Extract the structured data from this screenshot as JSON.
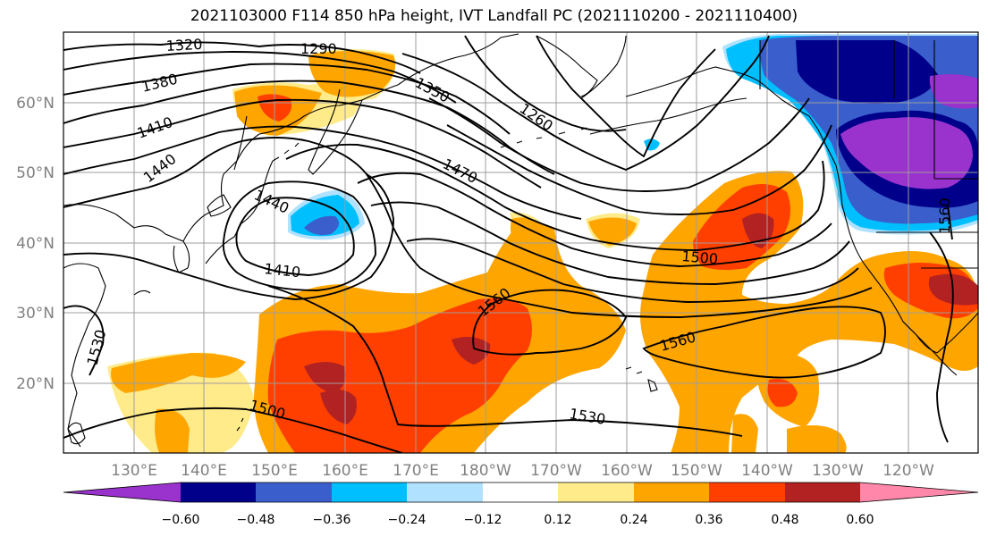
{
  "title": "2021103000 F114 850 hPa height, IVT Landfall PC (2021110200 - 2021110400)",
  "lat_labels": [
    "60°N",
    "50°N",
    "40°N",
    "30°N",
    "20°N"
  ],
  "lon_labels": [
    "130°E",
    "140°E",
    "150°E",
    "160°E",
    "170°E",
    "180°W",
    "170°W",
    "160°W",
    "150°W",
    "140°W",
    "130°W",
    "120°W"
  ],
  "contour_labels": [
    "1320",
    "1290",
    "1380",
    "1350",
    "1260",
    "1410",
    "1440",
    "1470",
    "1440",
    "1410",
    "1500",
    "1560",
    "1560",
    "1530",
    "1500",
    "1530",
    "1560"
  ],
  "colorbar": {
    "ticks": [
      "−0.60",
      "−0.48",
      "−0.36",
      "−0.24",
      "−0.12",
      "0.12",
      "0.24",
      "0.36",
      "0.48",
      "0.60"
    ],
    "colors": [
      "#9a32cd",
      "#00008b",
      "#3a5fcd",
      "#00bfff",
      "#b0e2ff",
      "#ffffff",
      "#ffeb8a",
      "#ffa500",
      "#ff3f00",
      "#b22222",
      "#ff88aa"
    ]
  },
  "colors": {
    "land_outline": "#000000",
    "contour": "#000000",
    "grid": "#9e9e9e"
  }
}
